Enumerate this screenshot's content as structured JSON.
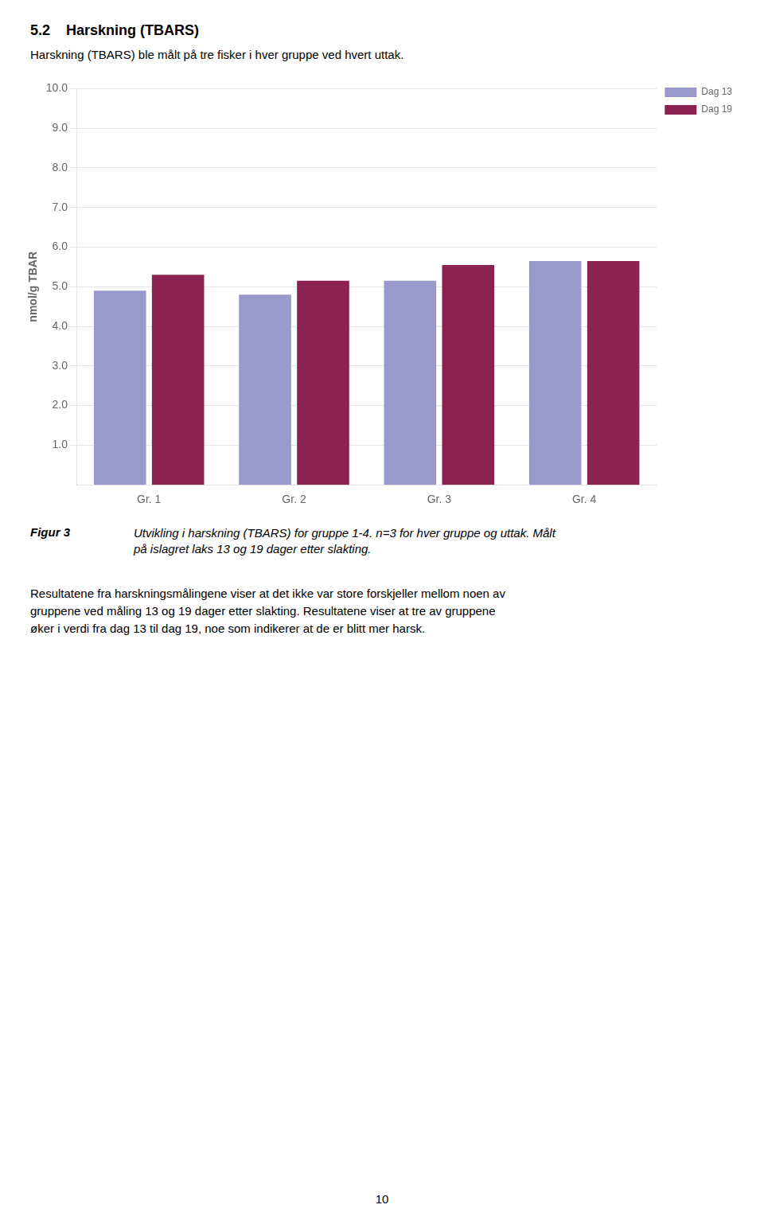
{
  "chart_data": {
    "type": "bar",
    "title": "5.2    Harskning (TBARS)",
    "subtitle": "Harskning (TBARS) ble målt på tre fisker i hver gruppe ved hvert uttak.",
    "annotations": [
      "Figur 3",
      "Utvikling i harskning (TBARS) for gruppe 1-4. n=3 for hver gruppe og uttak. Målt\npå islagret laks 13 og 19 dager etter slakting.",
      "Resultatene fra harskningsmålingene viser at det ikke var store forskjeller mellom noen av\ngruppene ved måling 13 og 19 dager etter slakting. Resultatene viser at tre av gruppene\nøker i verdi fra dag 13 til dag 19, noe som indikerer at de er blitt mer harsk.",
      "10"
    ],
    "ylabel": "nmol/g TBAR",
    "categories": [
      "Gr. 1",
      "Gr. 2",
      "Gr. 3",
      "Gr. 4"
    ],
    "series": [
      {
        "name": "Dag 13",
        "color": "#9999CC",
        "values": [
          4.9,
          4.8,
          5.15,
          5.65
        ]
      },
      {
        "name": "Dag 19",
        "color": "#8B2252",
        "values": [
          5.3,
          5.15,
          5.55,
          5.65
        ]
      }
    ],
    "ylim": [
      0,
      10.0
    ],
    "yticks": [
      {
        "value": 1.0,
        "label": "1.0"
      },
      {
        "value": 2.0,
        "label": "2.0"
      },
      {
        "value": 3.0,
        "label": "3.0"
      },
      {
        "value": 4.0,
        "label": "4.0"
      },
      {
        "value": 5.0,
        "label": "5.0"
      },
      {
        "value": 6.0,
        "label": "6.0"
      },
      {
        "value": 7.0,
        "label": "7.0"
      },
      {
        "value": 8.0,
        "label": "8.0"
      },
      {
        "value": 9.0,
        "label": "9.0"
      },
      {
        "value": 10.0,
        "label": "10.0"
      }
    ],
    "grid": true,
    "legend": "upper right"
  }
}
